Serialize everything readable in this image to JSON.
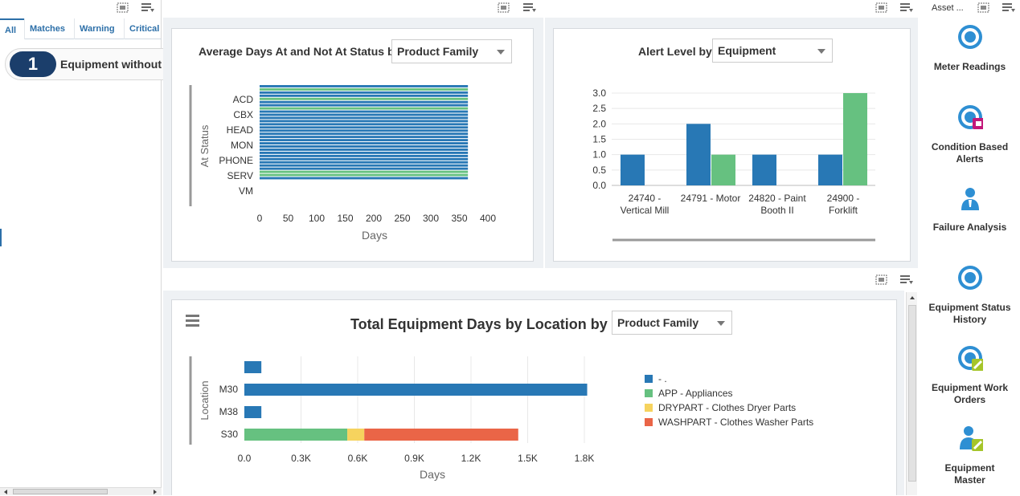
{
  "left_pane": {
    "tabs": [
      "All",
      "Matches",
      "Warning",
      "Critical"
    ],
    "watchlist": {
      "count": "1",
      "label": "Equipment without"
    }
  },
  "springboard": {
    "header": "Asset ...",
    "items": [
      {
        "label_lines": [
          "Meter Readings"
        ],
        "icon": "meter-readings-icon"
      },
      {
        "label_lines": [
          "Condition Based",
          "Alerts"
        ],
        "icon": "condition-alerts-icon"
      },
      {
        "label_lines": [
          "Failure Analysis"
        ],
        "icon": "failure-analysis-icon"
      },
      {
        "label_lines": [
          "Equipment Status",
          "History"
        ],
        "icon": "status-history-icon"
      },
      {
        "label_lines": [
          "Equipment Work",
          "Orders"
        ],
        "icon": "work-orders-icon"
      },
      {
        "label_lines": [
          "Equipment",
          "Master"
        ],
        "icon": "equipment-master-icon"
      }
    ]
  },
  "chart1": {
    "title": "Average Days At and Not At Status by",
    "select_value": "Product Family"
  },
  "chart2": {
    "title": "Alert Level by",
    "select_value": "Equipment"
  },
  "chart3": {
    "title": "Total Equipment Days by Location by",
    "select_value": "Product Family"
  },
  "colors": {
    "blue": "#2878b5",
    "green": "#66c180",
    "yellow": "#f6d35e",
    "red": "#ea6547",
    "navy": "#1b3e6b",
    "accent": "#2c6fa8"
  },
  "chart_data": [
    {
      "type": "bar",
      "orientation": "horizontal",
      "title": "Average Days At and Not At Status by Product Family",
      "xlabel": "Days",
      "ylabel": "At Status",
      "categories": [
        "ACD",
        "CBX",
        "HEAD",
        "MON",
        "PHONE",
        "SERV",
        "VM"
      ],
      "xlim": [
        0,
        400
      ],
      "xticks": [
        0,
        50,
        100,
        150,
        200,
        250,
        300,
        350,
        400
      ],
      "bars": [
        {
          "value": 365,
          "color": "blue"
        },
        {
          "value": 365,
          "color": "green"
        },
        {
          "value": 365,
          "color": "blue"
        },
        {
          "value": 365,
          "color": "blue"
        },
        {
          "value": 365,
          "color": "green"
        },
        {
          "value": 365,
          "color": "blue"
        },
        {
          "value": 365,
          "color": "blue"
        },
        {
          "value": 365,
          "color": "green"
        },
        {
          "value": 365,
          "color": "blue"
        },
        {
          "value": 365,
          "color": "blue"
        },
        {
          "value": 365,
          "color": "blue"
        },
        {
          "value": 365,
          "color": "blue"
        },
        {
          "value": 365,
          "color": "blue"
        },
        {
          "value": 365,
          "color": "blue"
        },
        {
          "value": 365,
          "color": "blue"
        },
        {
          "value": 365,
          "color": "blue"
        },
        {
          "value": 365,
          "color": "blue"
        },
        {
          "value": 365,
          "color": "blue"
        },
        {
          "value": 365,
          "color": "blue"
        },
        {
          "value": 365,
          "color": "blue"
        },
        {
          "value": 365,
          "color": "blue"
        },
        {
          "value": 365,
          "color": "blue"
        },
        {
          "value": 365,
          "color": "blue"
        },
        {
          "value": 365,
          "color": "blue"
        },
        {
          "value": 365,
          "color": "blue"
        },
        {
          "value": 365,
          "color": "blue"
        },
        {
          "value": 365,
          "color": "blue"
        },
        {
          "value": 365,
          "color": "green"
        },
        {
          "value": 365,
          "color": "green"
        },
        {
          "value": 365,
          "color": "blue"
        }
      ]
    },
    {
      "type": "bar",
      "title": "Alert Level by Equipment",
      "categories": [
        [
          "24740 -",
          "Vertical Mill"
        ],
        [
          "24791 - Motor"
        ],
        [
          "24820 - Paint",
          "Booth II"
        ],
        [
          "24900 -",
          "Forklift"
        ]
      ],
      "series": [
        {
          "name": "blue",
          "color": "blue",
          "values": [
            1,
            2,
            1,
            1
          ]
        },
        {
          "name": "green",
          "color": "green",
          "values": [
            0,
            1,
            0,
            3
          ]
        }
      ],
      "ylim": [
        0,
        3.0
      ],
      "yticks": [
        "0.0",
        "0.5",
        "1.0",
        "1.5",
        "2.0",
        "2.5",
        "3.0"
      ]
    },
    {
      "type": "bar",
      "orientation": "horizontal",
      "stacked": true,
      "title": "Total Equipment Days by Location by Product Family",
      "xlabel": "Days",
      "ylabel": "Location",
      "categories": [
        "",
        "M30",
        "M38",
        "S30"
      ],
      "xlim": [
        0,
        1800
      ],
      "xticks": [
        "0.0",
        "0.3K",
        "0.6K",
        "0.9K",
        "1.2K",
        "1.5K",
        "1.8K"
      ],
      "series": [
        {
          "name": "- .",
          "color": "blue",
          "values": [
            90,
            1815,
            90,
            0
          ]
        },
        {
          "name": "APP - Appliances",
          "color": "green",
          "values": [
            0,
            0,
            0,
            545
          ]
        },
        {
          "name": "DRYPART - Clothes Dryer Parts",
          "color": "yellow",
          "values": [
            0,
            0,
            0,
            90
          ]
        },
        {
          "name": "WASHPART - Clothes Washer Parts",
          "color": "red",
          "values": [
            0,
            0,
            0,
            815
          ]
        }
      ],
      "legend_position": "right"
    }
  ]
}
